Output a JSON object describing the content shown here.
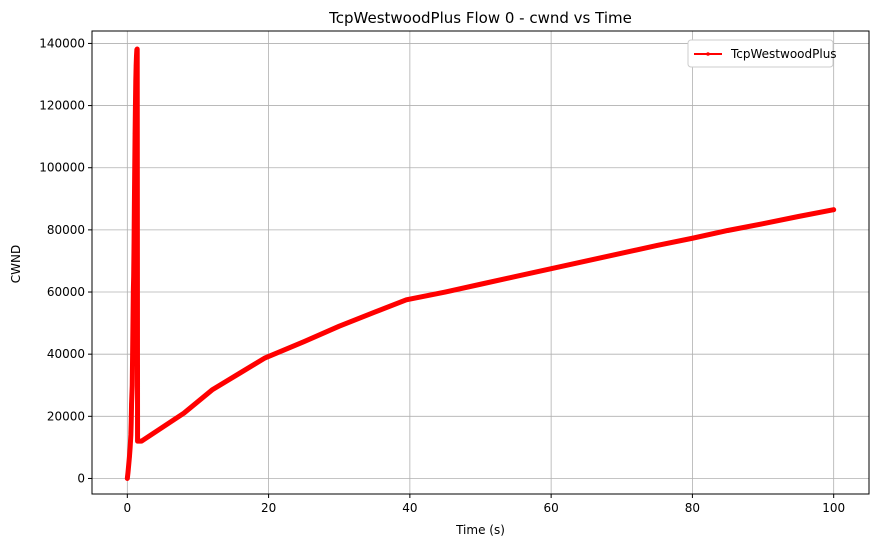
{
  "chart_data": {
    "type": "line",
    "title": "TcpWestwoodPlus Flow 0 - cwnd vs Time",
    "xlabel": "Time (s)",
    "ylabel": "CWND",
    "xlim": [
      -5,
      105
    ],
    "ylim": [
      -5000,
      144000
    ],
    "xticks": [
      0,
      20,
      40,
      60,
      80,
      100
    ],
    "yticks": [
      0,
      20000,
      40000,
      60000,
      80000,
      100000,
      120000,
      140000
    ],
    "grid": true,
    "legend_position": "top-right",
    "series": [
      {
        "name": "TcpWestwoodPlus",
        "color": "#ff0000",
        "marker": "point",
        "points": [
          [
            0.0,
            0
          ],
          [
            0.1,
            2000
          ],
          [
            0.2,
            4500
          ],
          [
            0.3,
            7000
          ],
          [
            0.4,
            10000
          ],
          [
            0.5,
            14000
          ],
          [
            0.55,
            18000
          ],
          [
            0.6,
            24000
          ],
          [
            0.7,
            30000
          ],
          [
            0.75,
            40000
          ],
          [
            0.8,
            50000
          ],
          [
            0.85,
            60000
          ],
          [
            0.9,
            65000
          ],
          [
            0.95,
            75000
          ],
          [
            1.0,
            88000
          ],
          [
            1.05,
            100000
          ],
          [
            1.1,
            111000
          ],
          [
            1.15,
            120000
          ],
          [
            1.2,
            128000
          ],
          [
            1.25,
            133000
          ],
          [
            1.3,
            136000
          ],
          [
            1.35,
            138000
          ],
          [
            1.4,
            138200
          ],
          [
            1.45,
            12000
          ],
          [
            2.0,
            12000
          ],
          [
            5.0,
            16500
          ],
          [
            8.0,
            21000
          ],
          [
            12.0,
            28500
          ],
          [
            16.0,
            34000
          ],
          [
            19.5,
            38800
          ],
          [
            25.0,
            44000
          ],
          [
            30.0,
            49000
          ],
          [
            35.0,
            53500
          ],
          [
            39.5,
            57500
          ],
          [
            45.0,
            60000
          ],
          [
            50.0,
            62500
          ],
          [
            55.0,
            65000
          ],
          [
            60.0,
            67500
          ],
          [
            65.0,
            70000
          ],
          [
            70.0,
            72500
          ],
          [
            75.0,
            75000
          ],
          [
            80.0,
            77300
          ],
          [
            85.0,
            79800
          ],
          [
            90.0,
            82000
          ],
          [
            95.0,
            84300
          ],
          [
            100.0,
            86500
          ]
        ]
      }
    ]
  }
}
